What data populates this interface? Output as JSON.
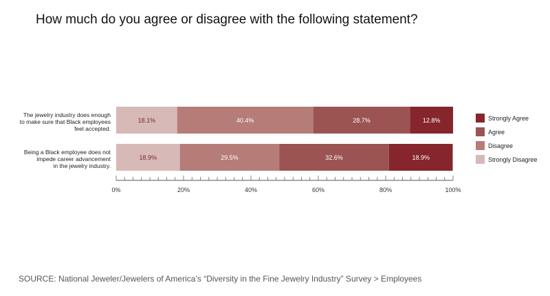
{
  "title": "How much do you agree or disagree with the following statement?",
  "source": "SOURCE: National Jeweler/Jewelers of America’s “Diversity in the Fine Jewelry Industry” Survey > Employees",
  "chart_data": {
    "type": "bar",
    "orientation": "horizontal",
    "stacked": true,
    "categories": [
      [
        "The jewelry industry does enough",
        "to make sure that Black employees",
        "feel accepted."
      ],
      [
        "Being a Black employee does not",
        "impede career advancement",
        "in the jewelry industry."
      ]
    ],
    "series": [
      {
        "name": "Strongly Disagree",
        "color": "#d7b9b7",
        "label_color": "#7a2a2e",
        "values": [
          18.1,
          18.9
        ],
        "labels": [
          "18.1%",
          "18.9%"
        ]
      },
      {
        "name": "Disagree",
        "color": "#b57c78",
        "label_color": "#ffffff",
        "values": [
          40.4,
          29.5
        ],
        "labels": [
          "40.4%",
          "29.5%"
        ]
      },
      {
        "name": "Agree",
        "color": "#9b5452",
        "label_color": "#ffffff",
        "values": [
          28.7,
          32.6
        ],
        "labels": [
          "28.7%",
          "32.6%"
        ]
      },
      {
        "name": "Strongly Agree",
        "color": "#86252c",
        "label_color": "#ffffff",
        "values": [
          12.8,
          18.9
        ],
        "labels": [
          "12.8%",
          "18.9%"
        ]
      }
    ],
    "legend_order": [
      "Strongly Agree",
      "Agree",
      "Disagree",
      "Strongly Disagree"
    ],
    "xlim": [
      0,
      100
    ],
    "x_ticks": [
      0,
      20,
      40,
      60,
      80,
      100
    ],
    "x_tick_labels": [
      "0%",
      "20%",
      "40%",
      "60%",
      "80%",
      "100%"
    ],
    "legend_position": "right",
    "grid": false
  }
}
